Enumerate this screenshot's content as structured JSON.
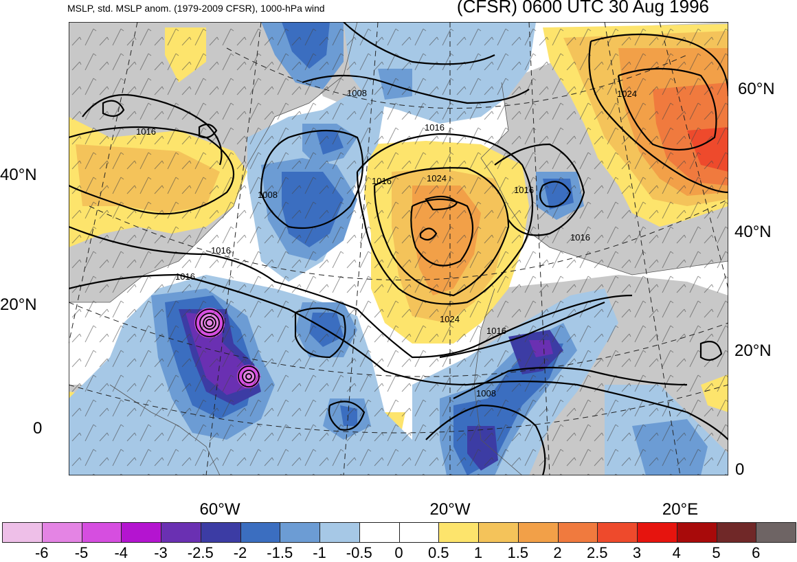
{
  "header": {
    "left_title": "MSLP, std. MSLP anom. (1979-2009 CFSR), 1000-hPa wind",
    "right_title": "(CFSR) 0600 UTC 30 Aug 1996"
  },
  "axes": {
    "lat_left": [
      "40°N",
      "20°N",
      "0"
    ],
    "lat_right": [
      "60°N",
      "40°N",
      "20°N",
      "0"
    ],
    "lon_bottom": [
      "60°W",
      "20°W",
      "20°E"
    ]
  },
  "isobars": [
    "1016",
    "1008",
    "1008",
    "1024",
    "1016",
    "1024",
    "1016",
    "1016",
    "1016",
    "1016",
    "1024",
    "1016",
    "1008",
    "1016"
  ],
  "colorbar": {
    "colors": [
      "#eebfe8",
      "#e484e4",
      "#d64ee0",
      "#b414d0",
      "#6a30b2",
      "#3c3ca4",
      "#3b6ec0",
      "#6c9cd4",
      "#a6c8e6",
      "#ffffff",
      "#ffffff",
      "#fde46c",
      "#f4c35a",
      "#f2a048",
      "#f07a3e",
      "#ee4a2c",
      "#e6140e",
      "#a80a0a",
      "#702828",
      "#6e6464"
    ],
    "labels": [
      "-6",
      "-5",
      "-4",
      "-3",
      "-2.5",
      "-2",
      "-1.5",
      "-1",
      "-0.5",
      "0",
      "0.5",
      "1",
      "1.5",
      "2",
      "2.5",
      "3",
      "4",
      "5",
      "6"
    ]
  }
}
